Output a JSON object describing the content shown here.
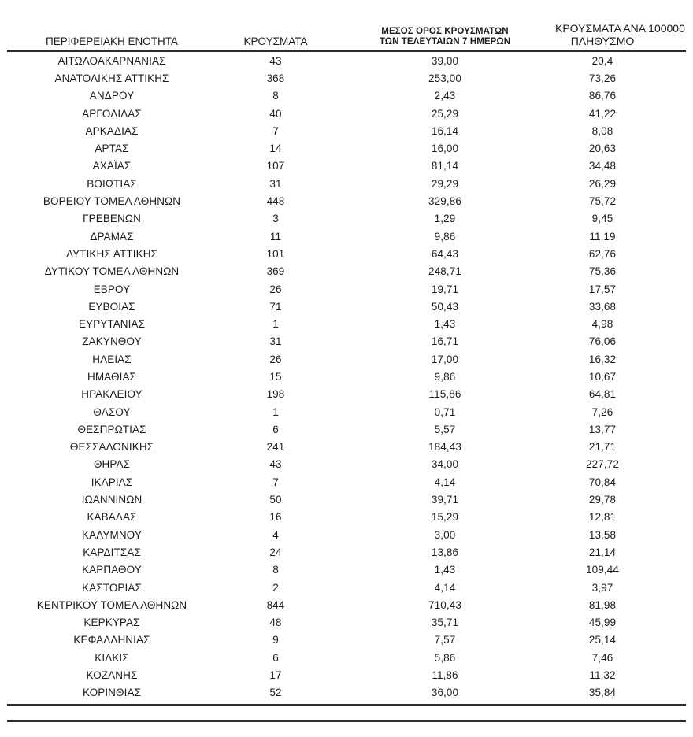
{
  "document": {
    "kind": "regional-covid-cases-table",
    "language": "el",
    "text_color": "#1c1c1c",
    "rule_color": "#2b2b2b",
    "background_color": "#ffffff"
  },
  "table": {
    "columns": [
      {
        "id": "region",
        "label": "ΠΕΡΙΦΕΡΕΙΑΚΗ ΕΝΟΤΗΤΑ"
      },
      {
        "id": "cases",
        "label": "ΚΡΟΥΣΜΑΤΑ"
      },
      {
        "id": "avg7",
        "label": "ΜΕΣΟΣ ΟΡΟΣ ΚΡΟΥΣΜΑΤΩΝ ΤΩΝ ΤΕΛΕΥΤΑΙΩΝ 7 ΗΜΕΡΩΝ",
        "label_line1": "ΜΕΣΟΣ ΟΡΟΣ ΚΡΟΥΣΜΑΤΩΝ",
        "label_line2": "ΤΩΝ ΤΕΛΕΥΤΑΙΩΝ 7 ΗΜΕΡΩΝ"
      },
      {
        "id": "per100k",
        "label": "ΚΡΟΥΣΜΑΤΑ ΑΝΑ 100000 ΠΛΗΘΥΣΜΟ",
        "label_line1": "ΚΡΟΥΣΜΑΤΑ ΑΝΑ 100000",
        "label_line2": "ΠΛΗΘΥΣΜΟ"
      }
    ],
    "rows": [
      {
        "region": "ΑΙΤΩΛΟΑΚΑΡΝΑΝΙΑΣ",
        "cases": "43",
        "avg7": "39,00",
        "per100k": "20,4"
      },
      {
        "region": "ΑΝΑΤΟΛΙΚΗΣ ΑΤΤΙΚΗΣ",
        "cases": "368",
        "avg7": "253,00",
        "per100k": "73,26"
      },
      {
        "region": "ΑΝΔΡΟΥ",
        "cases": "8",
        "avg7": "2,43",
        "per100k": "86,76"
      },
      {
        "region": "ΑΡΓΟΛΙΔΑΣ",
        "cases": "40",
        "avg7": "25,29",
        "per100k": "41,22"
      },
      {
        "region": "ΑΡΚΑΔΙΑΣ",
        "cases": "7",
        "avg7": "16,14",
        "per100k": "8,08"
      },
      {
        "region": "ΑΡΤΑΣ",
        "cases": "14",
        "avg7": "16,00",
        "per100k": "20,63"
      },
      {
        "region": "ΑΧΑΪΑΣ",
        "cases": "107",
        "avg7": "81,14",
        "per100k": "34,48"
      },
      {
        "region": "ΒΟΙΩΤΙΑΣ",
        "cases": "31",
        "avg7": "29,29",
        "per100k": "26,29"
      },
      {
        "region": "ΒΟΡΕΙΟΥ ΤΟΜΕΑ ΑΘΗΝΩΝ",
        "cases": "448",
        "avg7": "329,86",
        "per100k": "75,72"
      },
      {
        "region": "ΓΡΕΒΕΝΩΝ",
        "cases": "3",
        "avg7": "1,29",
        "per100k": "9,45"
      },
      {
        "region": "ΔΡΑΜΑΣ",
        "cases": "11",
        "avg7": "9,86",
        "per100k": "11,19"
      },
      {
        "region": "ΔΥΤΙΚΗΣ ΑΤΤΙΚΗΣ",
        "cases": "101",
        "avg7": "64,43",
        "per100k": "62,76"
      },
      {
        "region": "ΔΥΤΙΚΟΥ ΤΟΜΕΑ ΑΘΗΝΩΝ",
        "cases": "369",
        "avg7": "248,71",
        "per100k": "75,36"
      },
      {
        "region": "ΕΒΡΟΥ",
        "cases": "26",
        "avg7": "19,71",
        "per100k": "17,57"
      },
      {
        "region": "ΕΥΒΟΙΑΣ",
        "cases": "71",
        "avg7": "50,43",
        "per100k": "33,68"
      },
      {
        "region": "ΕΥΡΥΤΑΝΙΑΣ",
        "cases": "1",
        "avg7": "1,43",
        "per100k": "4,98"
      },
      {
        "region": "ΖΑΚΥΝΘΟΥ",
        "cases": "31",
        "avg7": "16,71",
        "per100k": "76,06"
      },
      {
        "region": "ΗΛΕΙΑΣ",
        "cases": "26",
        "avg7": "17,00",
        "per100k": "16,32"
      },
      {
        "region": "ΗΜΑΘΙΑΣ",
        "cases": "15",
        "avg7": "9,86",
        "per100k": "10,67"
      },
      {
        "region": "ΗΡΑΚΛΕΙΟΥ",
        "cases": "198",
        "avg7": "115,86",
        "per100k": "64,81"
      },
      {
        "region": "ΘΑΣΟΥ",
        "cases": "1",
        "avg7": "0,71",
        "per100k": "7,26"
      },
      {
        "region": "ΘΕΣΠΡΩΤΙΑΣ",
        "cases": "6",
        "avg7": "5,57",
        "per100k": "13,77"
      },
      {
        "region": "ΘΕΣΣΑΛΟΝΙΚΗΣ",
        "cases": "241",
        "avg7": "184,43",
        "per100k": "21,71"
      },
      {
        "region": "ΘΗΡΑΣ",
        "cases": "43",
        "avg7": "34,00",
        "per100k": "227,72"
      },
      {
        "region": "ΙΚΑΡΙΑΣ",
        "cases": "7",
        "avg7": "4,14",
        "per100k": "70,84"
      },
      {
        "region": "ΙΩΑΝΝΙΝΩΝ",
        "cases": "50",
        "avg7": "39,71",
        "per100k": "29,78"
      },
      {
        "region": "ΚΑΒΑΛΑΣ",
        "cases": "16",
        "avg7": "15,29",
        "per100k": "12,81"
      },
      {
        "region": "ΚΑΛΥΜΝΟΥ",
        "cases": "4",
        "avg7": "3,00",
        "per100k": "13,58"
      },
      {
        "region": "ΚΑΡΔΙΤΣΑΣ",
        "cases": "24",
        "avg7": "13,86",
        "per100k": "21,14"
      },
      {
        "region": "ΚΑΡΠΑΘΟΥ",
        "cases": "8",
        "avg7": "1,43",
        "per100k": "109,44"
      },
      {
        "region": "ΚΑΣΤΟΡΙΑΣ",
        "cases": "2",
        "avg7": "4,14",
        "per100k": "3,97"
      },
      {
        "region": "ΚΕΝΤΡΙΚΟΥ ΤΟΜΕΑ ΑΘΗΝΩΝ",
        "cases": "844",
        "avg7": "710,43",
        "per100k": "81,98"
      },
      {
        "region": "ΚΕΡΚΥΡΑΣ",
        "cases": "48",
        "avg7": "35,71",
        "per100k": "45,99"
      },
      {
        "region": "ΚΕΦΑΛΛΗΝΙΑΣ",
        "cases": "9",
        "avg7": "7,57",
        "per100k": "25,14"
      },
      {
        "region": "ΚΙΛΚΙΣ",
        "cases": "6",
        "avg7": "5,86",
        "per100k": "7,46"
      },
      {
        "region": "ΚΟΖΑΝΗΣ",
        "cases": "17",
        "avg7": "11,86",
        "per100k": "11,32"
      },
      {
        "region": "ΚΟΡΙΝΘΙΑΣ",
        "cases": "52",
        "avg7": "36,00",
        "per100k": "35,84"
      }
    ]
  }
}
